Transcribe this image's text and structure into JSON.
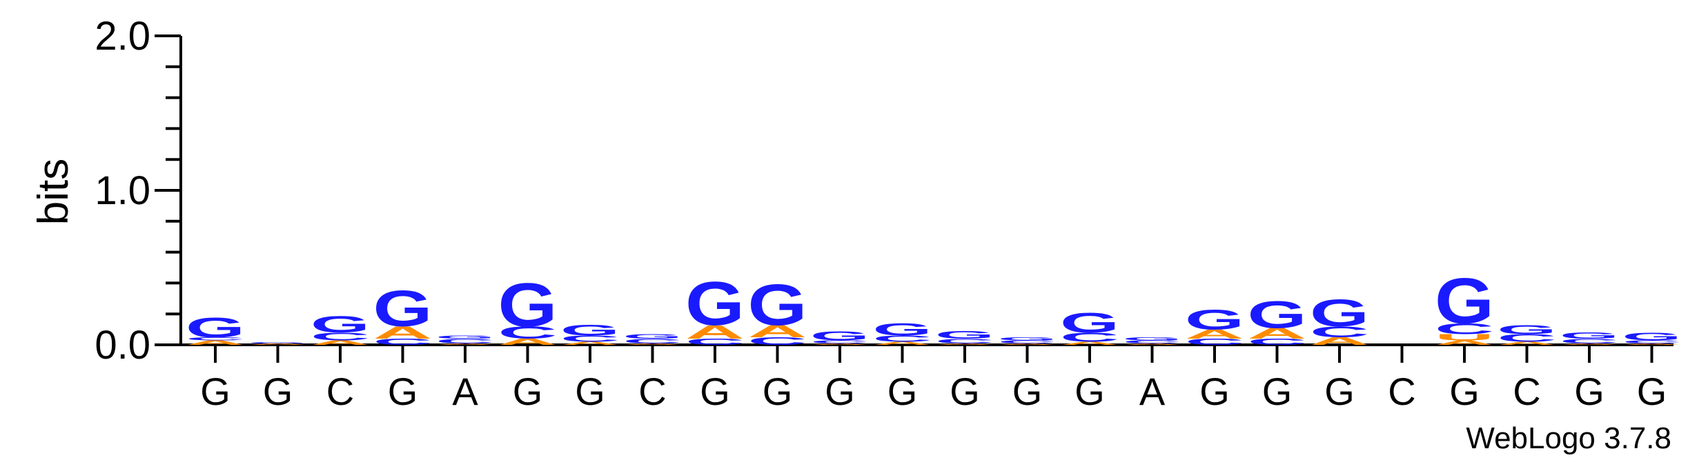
{
  "chart_data": {
    "type": "sequence-logo",
    "ylabel": "bits",
    "ylim": [
      0,
      2.0
    ],
    "yticks": [
      "0.0",
      "1.0",
      "2.0"
    ],
    "positions": [
      "G",
      "G",
      "C",
      "G",
      "A",
      "G",
      "G",
      "C",
      "G",
      "G",
      "G",
      "G",
      "G",
      "G",
      "G",
      "A",
      "G",
      "G",
      "G",
      "C",
      "G",
      "C",
      "G",
      "G"
    ],
    "colors": {
      "G": "#1a1aff",
      "C": "#1a1aff",
      "A": "#ff8c00",
      "T": "#ff8c00",
      "U": "#ff8c00"
    },
    "stacks": [
      [
        {
          "letter": "A",
          "bits": 0.03
        },
        {
          "letter": "C",
          "bits": 0.02
        },
        {
          "letter": "G",
          "bits": 0.13
        }
      ],
      [
        {
          "letter": "A",
          "bits": 0.01
        },
        {
          "letter": "G",
          "bits": 0.01
        }
      ],
      [
        {
          "letter": "A",
          "bits": 0.03
        },
        {
          "letter": "C",
          "bits": 0.05
        },
        {
          "letter": "G",
          "bits": 0.11
        }
      ],
      [
        {
          "letter": "C",
          "bits": 0.04
        },
        {
          "letter": "A",
          "bits": 0.08
        },
        {
          "letter": "G",
          "bits": 0.24
        }
      ],
      [
        {
          "letter": "A",
          "bits": 0.01
        },
        {
          "letter": "C",
          "bits": 0.03
        },
        {
          "letter": "G",
          "bits": 0.02
        }
      ],
      [
        {
          "letter": "A",
          "bits": 0.04
        },
        {
          "letter": "C",
          "bits": 0.08
        },
        {
          "letter": "G",
          "bits": 0.29
        }
      ],
      [
        {
          "letter": "A",
          "bits": 0.02
        },
        {
          "letter": "C",
          "bits": 0.04
        },
        {
          "letter": "G",
          "bits": 0.07
        }
      ],
      [
        {
          "letter": "A",
          "bits": 0.01
        },
        {
          "letter": "C",
          "bits": 0.03
        },
        {
          "letter": "G",
          "bits": 0.03
        }
      ],
      [
        {
          "letter": "C",
          "bits": 0.04
        },
        {
          "letter": "A",
          "bits": 0.09
        },
        {
          "letter": "G",
          "bits": 0.29
        }
      ],
      [
        {
          "letter": "C",
          "bits": 0.05
        },
        {
          "letter": "A",
          "bits": 0.08
        },
        {
          "letter": "G",
          "bits": 0.27
        }
      ],
      [
        {
          "letter": "A",
          "bits": 0.01
        },
        {
          "letter": "C",
          "bits": 0.02
        },
        {
          "letter": "G",
          "bits": 0.06
        }
      ],
      [
        {
          "letter": "A",
          "bits": 0.02
        },
        {
          "letter": "C",
          "bits": 0.04
        },
        {
          "letter": "G",
          "bits": 0.08
        }
      ],
      [
        {
          "letter": "A",
          "bits": 0.01
        },
        {
          "letter": "C",
          "bits": 0.03
        },
        {
          "letter": "G",
          "bits": 0.05
        }
      ],
      [
        {
          "letter": "A",
          "bits": 0.01
        },
        {
          "letter": "C",
          "bits": 0.02
        },
        {
          "letter": "G",
          "bits": 0.02
        }
      ],
      [
        {
          "letter": "A",
          "bits": 0.02
        },
        {
          "letter": "C",
          "bits": 0.06
        },
        {
          "letter": "G",
          "bits": 0.13
        }
      ],
      [
        {
          "letter": "A",
          "bits": 0.01
        },
        {
          "letter": "C",
          "bits": 0.02
        },
        {
          "letter": "G",
          "bits": 0.02
        }
      ],
      [
        {
          "letter": "C",
          "bits": 0.04
        },
        {
          "letter": "A",
          "bits": 0.06
        },
        {
          "letter": "G",
          "bits": 0.13
        }
      ],
      [
        {
          "letter": "C",
          "bits": 0.04
        },
        {
          "letter": "A",
          "bits": 0.07
        },
        {
          "letter": "G",
          "bits": 0.18
        }
      ],
      [
        {
          "letter": "A",
          "bits": 0.05
        },
        {
          "letter": "C",
          "bits": 0.07
        },
        {
          "letter": "G",
          "bits": 0.18
        }
      ],
      [
        {
          "letter": "A",
          "bits": 0.0
        },
        {
          "letter": "C",
          "bits": 0.0
        },
        {
          "letter": "G",
          "bits": 0.0
        }
      ],
      [
        {
          "letter": "A",
          "bits": 0.03
        },
        {
          "letter": "U",
          "bits": 0.04
        },
        {
          "letter": "C",
          "bits": 0.07
        },
        {
          "letter": "G",
          "bits": 0.3
        }
      ],
      [
        {
          "letter": "A",
          "bits": 0.02
        },
        {
          "letter": "C",
          "bits": 0.05
        },
        {
          "letter": "G",
          "bits": 0.06
        }
      ],
      [
        {
          "letter": "A",
          "bits": 0.01
        },
        {
          "letter": "C",
          "bits": 0.03
        },
        {
          "letter": "G",
          "bits": 0.04
        }
      ],
      [
        {
          "letter": "A",
          "bits": 0.01
        },
        {
          "letter": "C",
          "bits": 0.02
        },
        {
          "letter": "G",
          "bits": 0.05
        }
      ]
    ],
    "credit": "WebLogo 3.7.8"
  }
}
